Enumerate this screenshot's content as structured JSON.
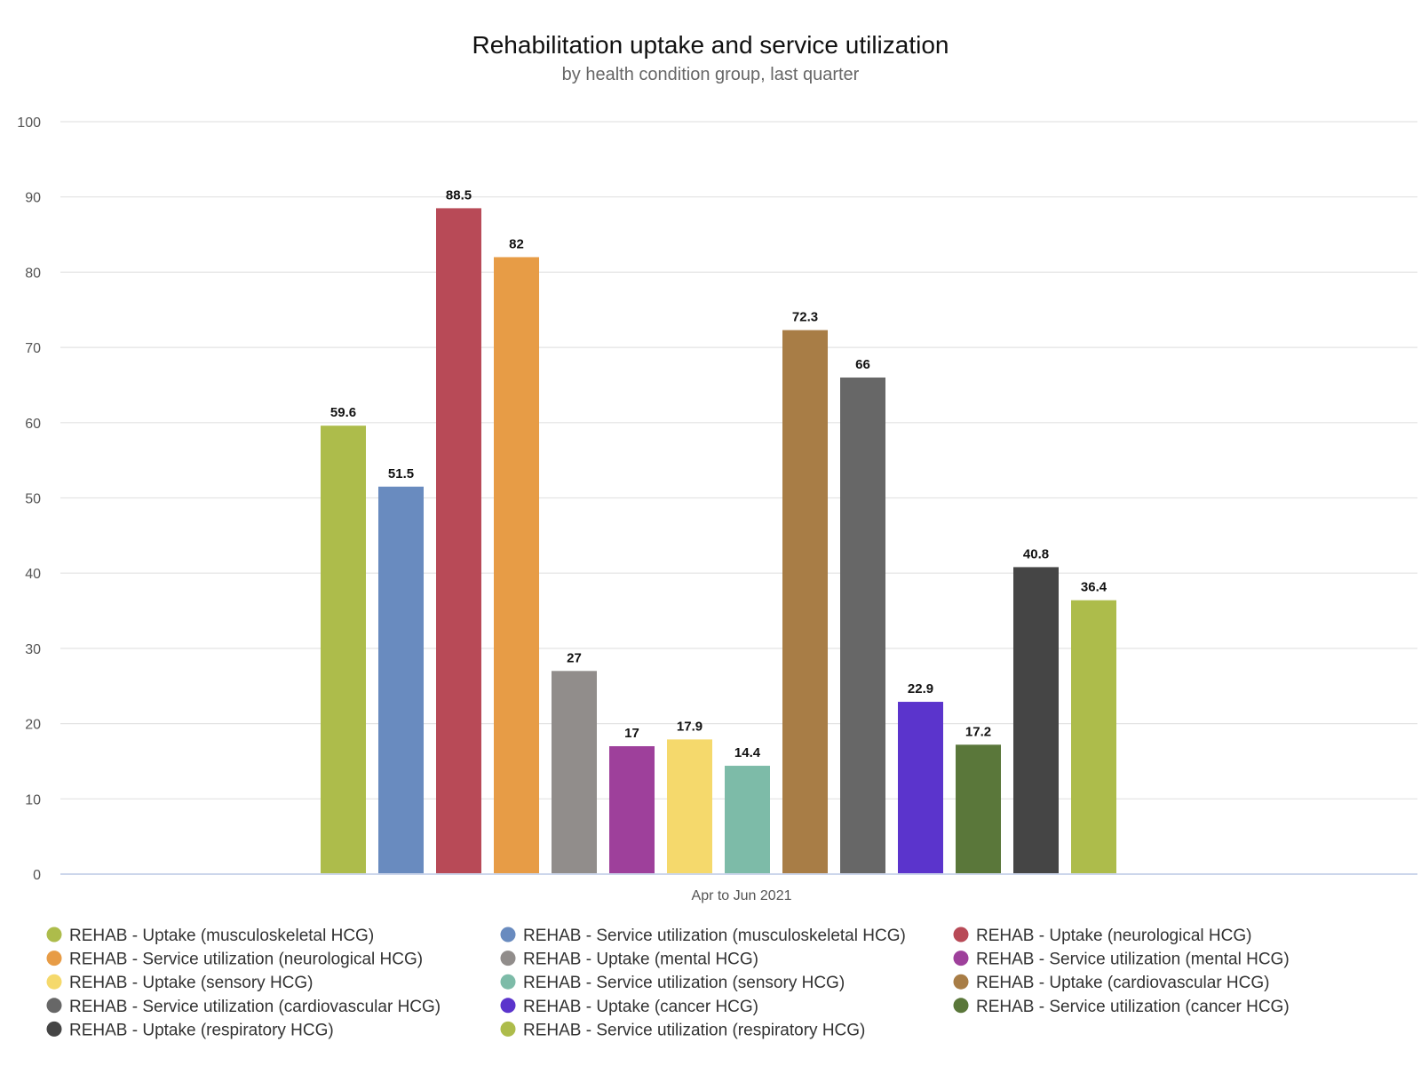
{
  "chart_data": {
    "type": "bar",
    "title": "Rehabilitation uptake and service utilization",
    "subtitle": "by health condition group, last quarter",
    "xlabel": "",
    "ylabel": "",
    "categories": [
      "Apr to Jun 2021"
    ],
    "ylim": [
      0,
      100
    ],
    "yticks": [
      0,
      10,
      20,
      30,
      40,
      50,
      60,
      70,
      80,
      90,
      100
    ],
    "grid": true,
    "legend_position": "bottom",
    "data_labels": true,
    "series": [
      {
        "name": "REHAB - Uptake (musculoskeletal HCG)",
        "color": "#adbc4b",
        "values": [
          59.6
        ]
      },
      {
        "name": "REHAB - Service utilization (musculoskeletal HCG)",
        "color": "#698bbf",
        "values": [
          51.5
        ]
      },
      {
        "name": "REHAB - Uptake (neurological HCG)",
        "color": "#b84a57",
        "values": [
          88.5
        ]
      },
      {
        "name": "REHAB - Service utilization (neurological HCG)",
        "color": "#e79c46",
        "values": [
          82
        ]
      },
      {
        "name": "REHAB - Uptake (mental HCG)",
        "color": "#918d8b",
        "values": [
          27
        ]
      },
      {
        "name": "REHAB - Service utilization (mental HCG)",
        "color": "#9e409b",
        "values": [
          17
        ]
      },
      {
        "name": "REHAB - Uptake (sensory HCG)",
        "color": "#f5d96c",
        "values": [
          17.9
        ]
      },
      {
        "name": "REHAB - Service utilization (sensory HCG)",
        "color": "#7dbba8",
        "values": [
          14.4
        ]
      },
      {
        "name": "REHAB - Uptake (cardiovascular HCG)",
        "color": "#a87d46",
        "values": [
          72.3
        ]
      },
      {
        "name": "REHAB - Service utilization (cardiovascular HCG)",
        "color": "#676767",
        "values": [
          66
        ]
      },
      {
        "name": "REHAB - Uptake (cancer HCG)",
        "color": "#5b34cc",
        "values": [
          22.9
        ]
      },
      {
        "name": "REHAB - Service utilization (cancer HCG)",
        "color": "#5a773a",
        "values": [
          17.2
        ]
      },
      {
        "name": "REHAB - Uptake (respiratory HCG)",
        "color": "#454545",
        "values": [
          40.8
        ]
      },
      {
        "name": "REHAB - Service utilization (respiratory HCG)",
        "color": "#adbc4b",
        "values": [
          36.4
        ]
      }
    ]
  }
}
